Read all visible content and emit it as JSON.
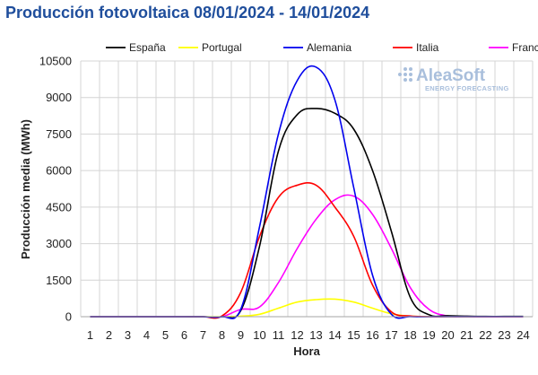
{
  "title": "Producción fotovoltaica 08/01/2024 - 14/01/2024",
  "brand": {
    "name": "AleaSoft",
    "tagline": "ENERGY FORECASTING"
  },
  "chart_data": {
    "type": "line",
    "xlabel": "Hora",
    "ylabel": "Producción media (MWh)",
    "x": [
      1,
      2,
      3,
      4,
      5,
      6,
      7,
      8,
      9,
      10,
      11,
      12,
      13,
      14,
      15,
      16,
      17,
      18,
      19,
      20,
      21,
      22,
      23,
      24
    ],
    "ylim": [
      0,
      10500
    ],
    "yticks": [
      0,
      1500,
      3000,
      4500,
      6000,
      7500,
      9000,
      10500
    ],
    "grid": true,
    "legend_position": "top",
    "series": [
      {
        "name": "España",
        "color": "#000000",
        "values": [
          0,
          0,
          0,
          0,
          0,
          0,
          0,
          0,
          250,
          2900,
          6800,
          8300,
          8550,
          8350,
          7700,
          6000,
          3500,
          800,
          80,
          40,
          20,
          10,
          10,
          10
        ]
      },
      {
        "name": "Portugal",
        "color": "#ffff00",
        "values": [
          0,
          0,
          0,
          0,
          0,
          0,
          0,
          0,
          20,
          100,
          350,
          600,
          700,
          720,
          600,
          350,
          120,
          20,
          5,
          0,
          0,
          0,
          0,
          0
        ]
      },
      {
        "name": "Alemania",
        "color": "#0000ee",
        "values": [
          0,
          0,
          0,
          0,
          0,
          0,
          0,
          0,
          300,
          3700,
          7500,
          9700,
          10250,
          8900,
          5300,
          1700,
          100,
          0,
          0,
          0,
          0,
          0,
          0,
          0
        ]
      },
      {
        "name": "Italia",
        "color": "#ff0000",
        "values": [
          0,
          0,
          0,
          0,
          0,
          0,
          0,
          30,
          1000,
          3300,
          4900,
          5400,
          5400,
          4500,
          3300,
          1300,
          200,
          30,
          0,
          0,
          0,
          0,
          0,
          0
        ]
      },
      {
        "name": "Francia",
        "color": "#ff00ff",
        "values": [
          0,
          0,
          0,
          0,
          0,
          0,
          0,
          0,
          300,
          400,
          1400,
          2800,
          4000,
          4800,
          4950,
          4200,
          2800,
          1200,
          300,
          30,
          10,
          0,
          0,
          0
        ]
      }
    ]
  }
}
